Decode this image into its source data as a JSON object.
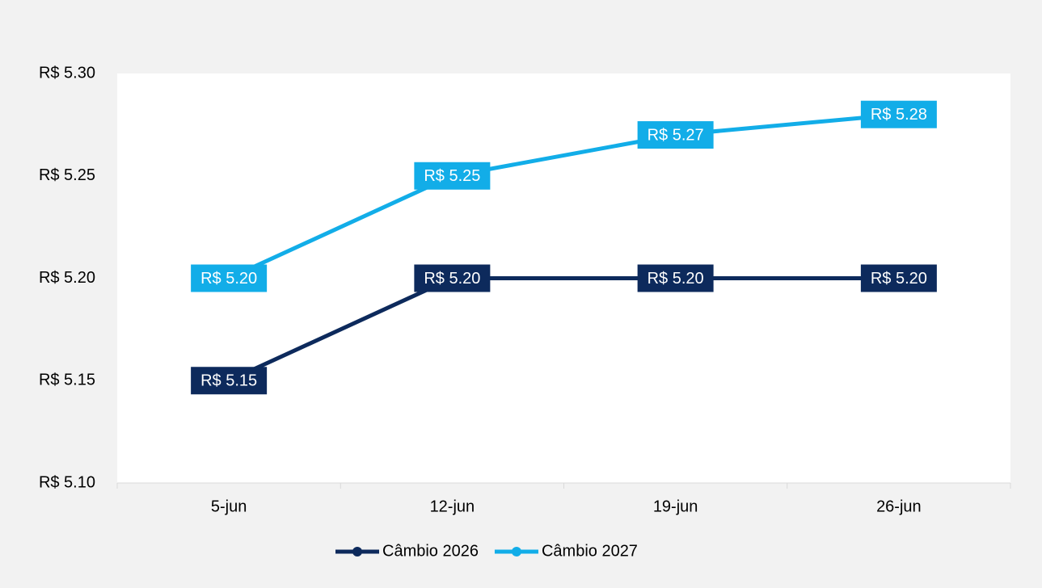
{
  "chart_data": {
    "type": "line",
    "categories": [
      "5-jun",
      "12-jun",
      "19-jun",
      "26-jun"
    ],
    "series": [
      {
        "name": "Câmbio 2026",
        "color": "#0d2a5c",
        "values": [
          5.15,
          5.2,
          5.2,
          5.2
        ],
        "value_labels": [
          "R$ 5.15",
          "R$ 5.20",
          "R$ 5.20",
          "R$ 5.20"
        ]
      },
      {
        "name": "Câmbio 2027",
        "color": "#12ade8",
        "values": [
          5.2,
          5.25,
          5.27,
          5.28
        ],
        "value_labels": [
          "R$ 5.20",
          "R$ 5.25",
          "R$ 5.27",
          "R$ 5.28"
        ]
      }
    ],
    "ylim": [
      5.1,
      5.3
    ],
    "yticks": [
      {
        "value": 5.1,
        "label": "R$ 5.10"
      },
      {
        "value": 5.15,
        "label": "R$ 5.15"
      },
      {
        "value": 5.2,
        "label": "R$ 5.20"
      },
      {
        "value": 5.25,
        "label": "R$ 5.25"
      },
      {
        "value": 5.3,
        "label": "R$ 5.30"
      }
    ],
    "grid": false,
    "legend": "bottom"
  }
}
